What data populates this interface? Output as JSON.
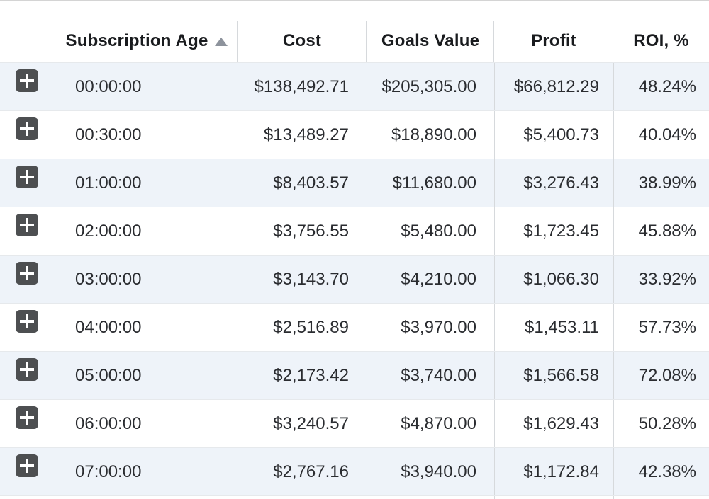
{
  "table": {
    "columns": [
      {
        "key": "expand",
        "label": ""
      },
      {
        "key": "subscription_age",
        "label": "Subscription Age",
        "sort": "ascending"
      },
      {
        "key": "cost",
        "label": "Cost"
      },
      {
        "key": "goals_value",
        "label": "Goals Value"
      },
      {
        "key": "profit",
        "label": "Profit"
      },
      {
        "key": "roi",
        "label": "ROI, %"
      }
    ],
    "rows": [
      {
        "subscription_age": "00:00:00",
        "cost": "$138,492.71",
        "goals_value": "$205,305.00",
        "profit": "$66,812.29",
        "roi": "48.24%"
      },
      {
        "subscription_age": "00:30:00",
        "cost": "$13,489.27",
        "goals_value": "$18,890.00",
        "profit": "$5,400.73",
        "roi": "40.04%"
      },
      {
        "subscription_age": "01:00:00",
        "cost": "$8,403.57",
        "goals_value": "$11,680.00",
        "profit": "$3,276.43",
        "roi": "38.99%"
      },
      {
        "subscription_age": "02:00:00",
        "cost": "$3,756.55",
        "goals_value": "$5,480.00",
        "profit": "$1,723.45",
        "roi": "45.88%"
      },
      {
        "subscription_age": "03:00:00",
        "cost": "$3,143.70",
        "goals_value": "$4,210.00",
        "profit": "$1,066.30",
        "roi": "33.92%"
      },
      {
        "subscription_age": "04:00:00",
        "cost": "$2,516.89",
        "goals_value": "$3,970.00",
        "profit": "$1,453.11",
        "roi": "57.73%"
      },
      {
        "subscription_age": "05:00:00",
        "cost": "$2,173.42",
        "goals_value": "$3,740.00",
        "profit": "$1,566.58",
        "roi": "72.08%"
      },
      {
        "subscription_age": "06:00:00",
        "cost": "$3,240.57",
        "goals_value": "$4,870.00",
        "profit": "$1,629.43",
        "roi": "50.28%"
      },
      {
        "subscription_age": "07:00:00",
        "cost": "$2,767.16",
        "goals_value": "$3,940.00",
        "profit": "$1,172.84",
        "roi": "42.38%"
      }
    ],
    "icons": {
      "expand_row": "plus-icon",
      "sort": "triangle-up-icon"
    },
    "colors": {
      "alt_row_bg": "#eef3f9",
      "row_bg": "#ffffff",
      "divider": "#d6d9dc",
      "row_separator": "#e6e9ec",
      "header_text": "#191b1e",
      "body_text": "#2a2c30",
      "expand_button_bg": "#4d4f51",
      "sort_arrow": "#8d939c"
    }
  }
}
